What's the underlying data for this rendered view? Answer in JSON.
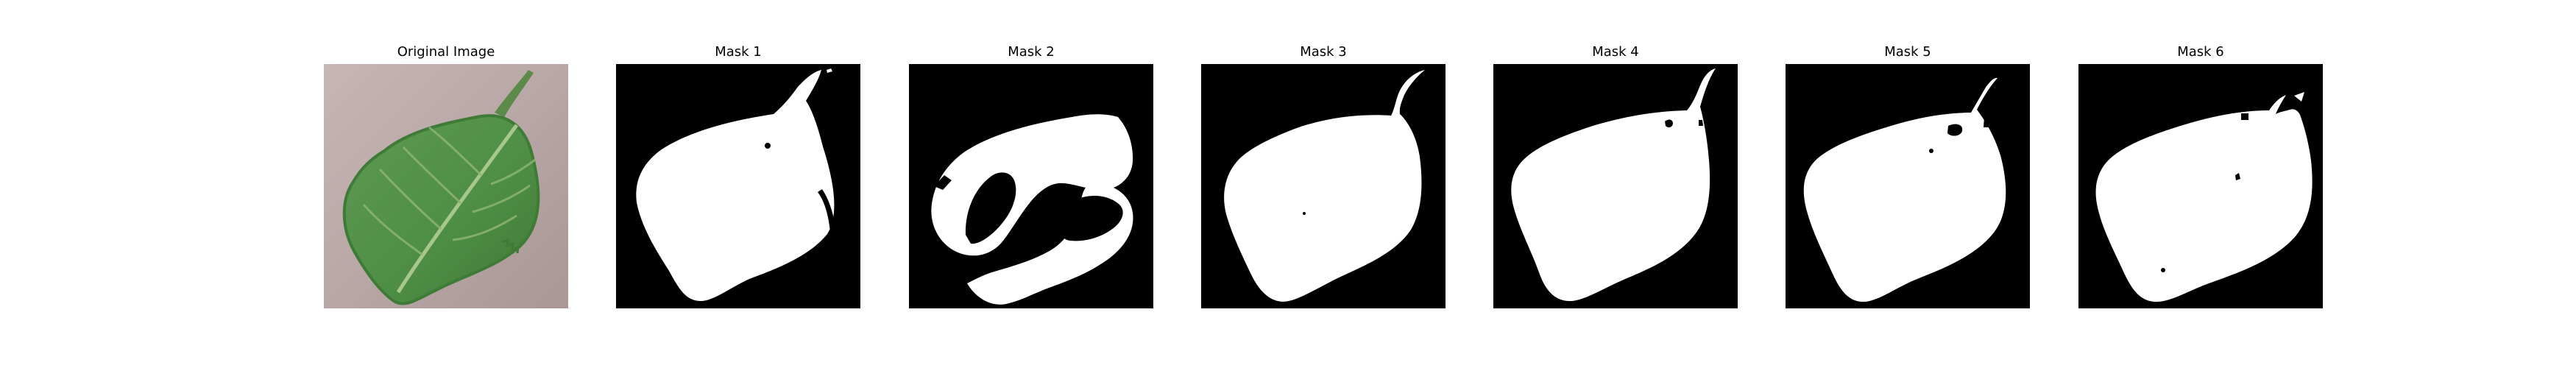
{
  "figure": {
    "panels": [
      {
        "title": "Original Image",
        "kind": "photo"
      },
      {
        "title": "Mask 1",
        "kind": "mask",
        "variant": "full"
      },
      {
        "title": "Mask 2",
        "kind": "mask",
        "variant": "fragmented"
      },
      {
        "title": "Mask 3",
        "kind": "mask",
        "variant": "full"
      },
      {
        "title": "Mask 4",
        "kind": "mask",
        "variant": "full-small-holes"
      },
      {
        "title": "Mask 5",
        "kind": "mask",
        "variant": "full-small-holes"
      },
      {
        "title": "Mask 6",
        "kind": "mask",
        "variant": "full-small-holes"
      }
    ]
  },
  "colors": {
    "background": "#ffffff",
    "mask_foreground": "#ffffff",
    "mask_background": "#000000",
    "photo_background": "#b8a7a6",
    "leaf_fill": "#4f8f45",
    "leaf_vein": "#a7c78d",
    "stem": "#5c8b49"
  }
}
